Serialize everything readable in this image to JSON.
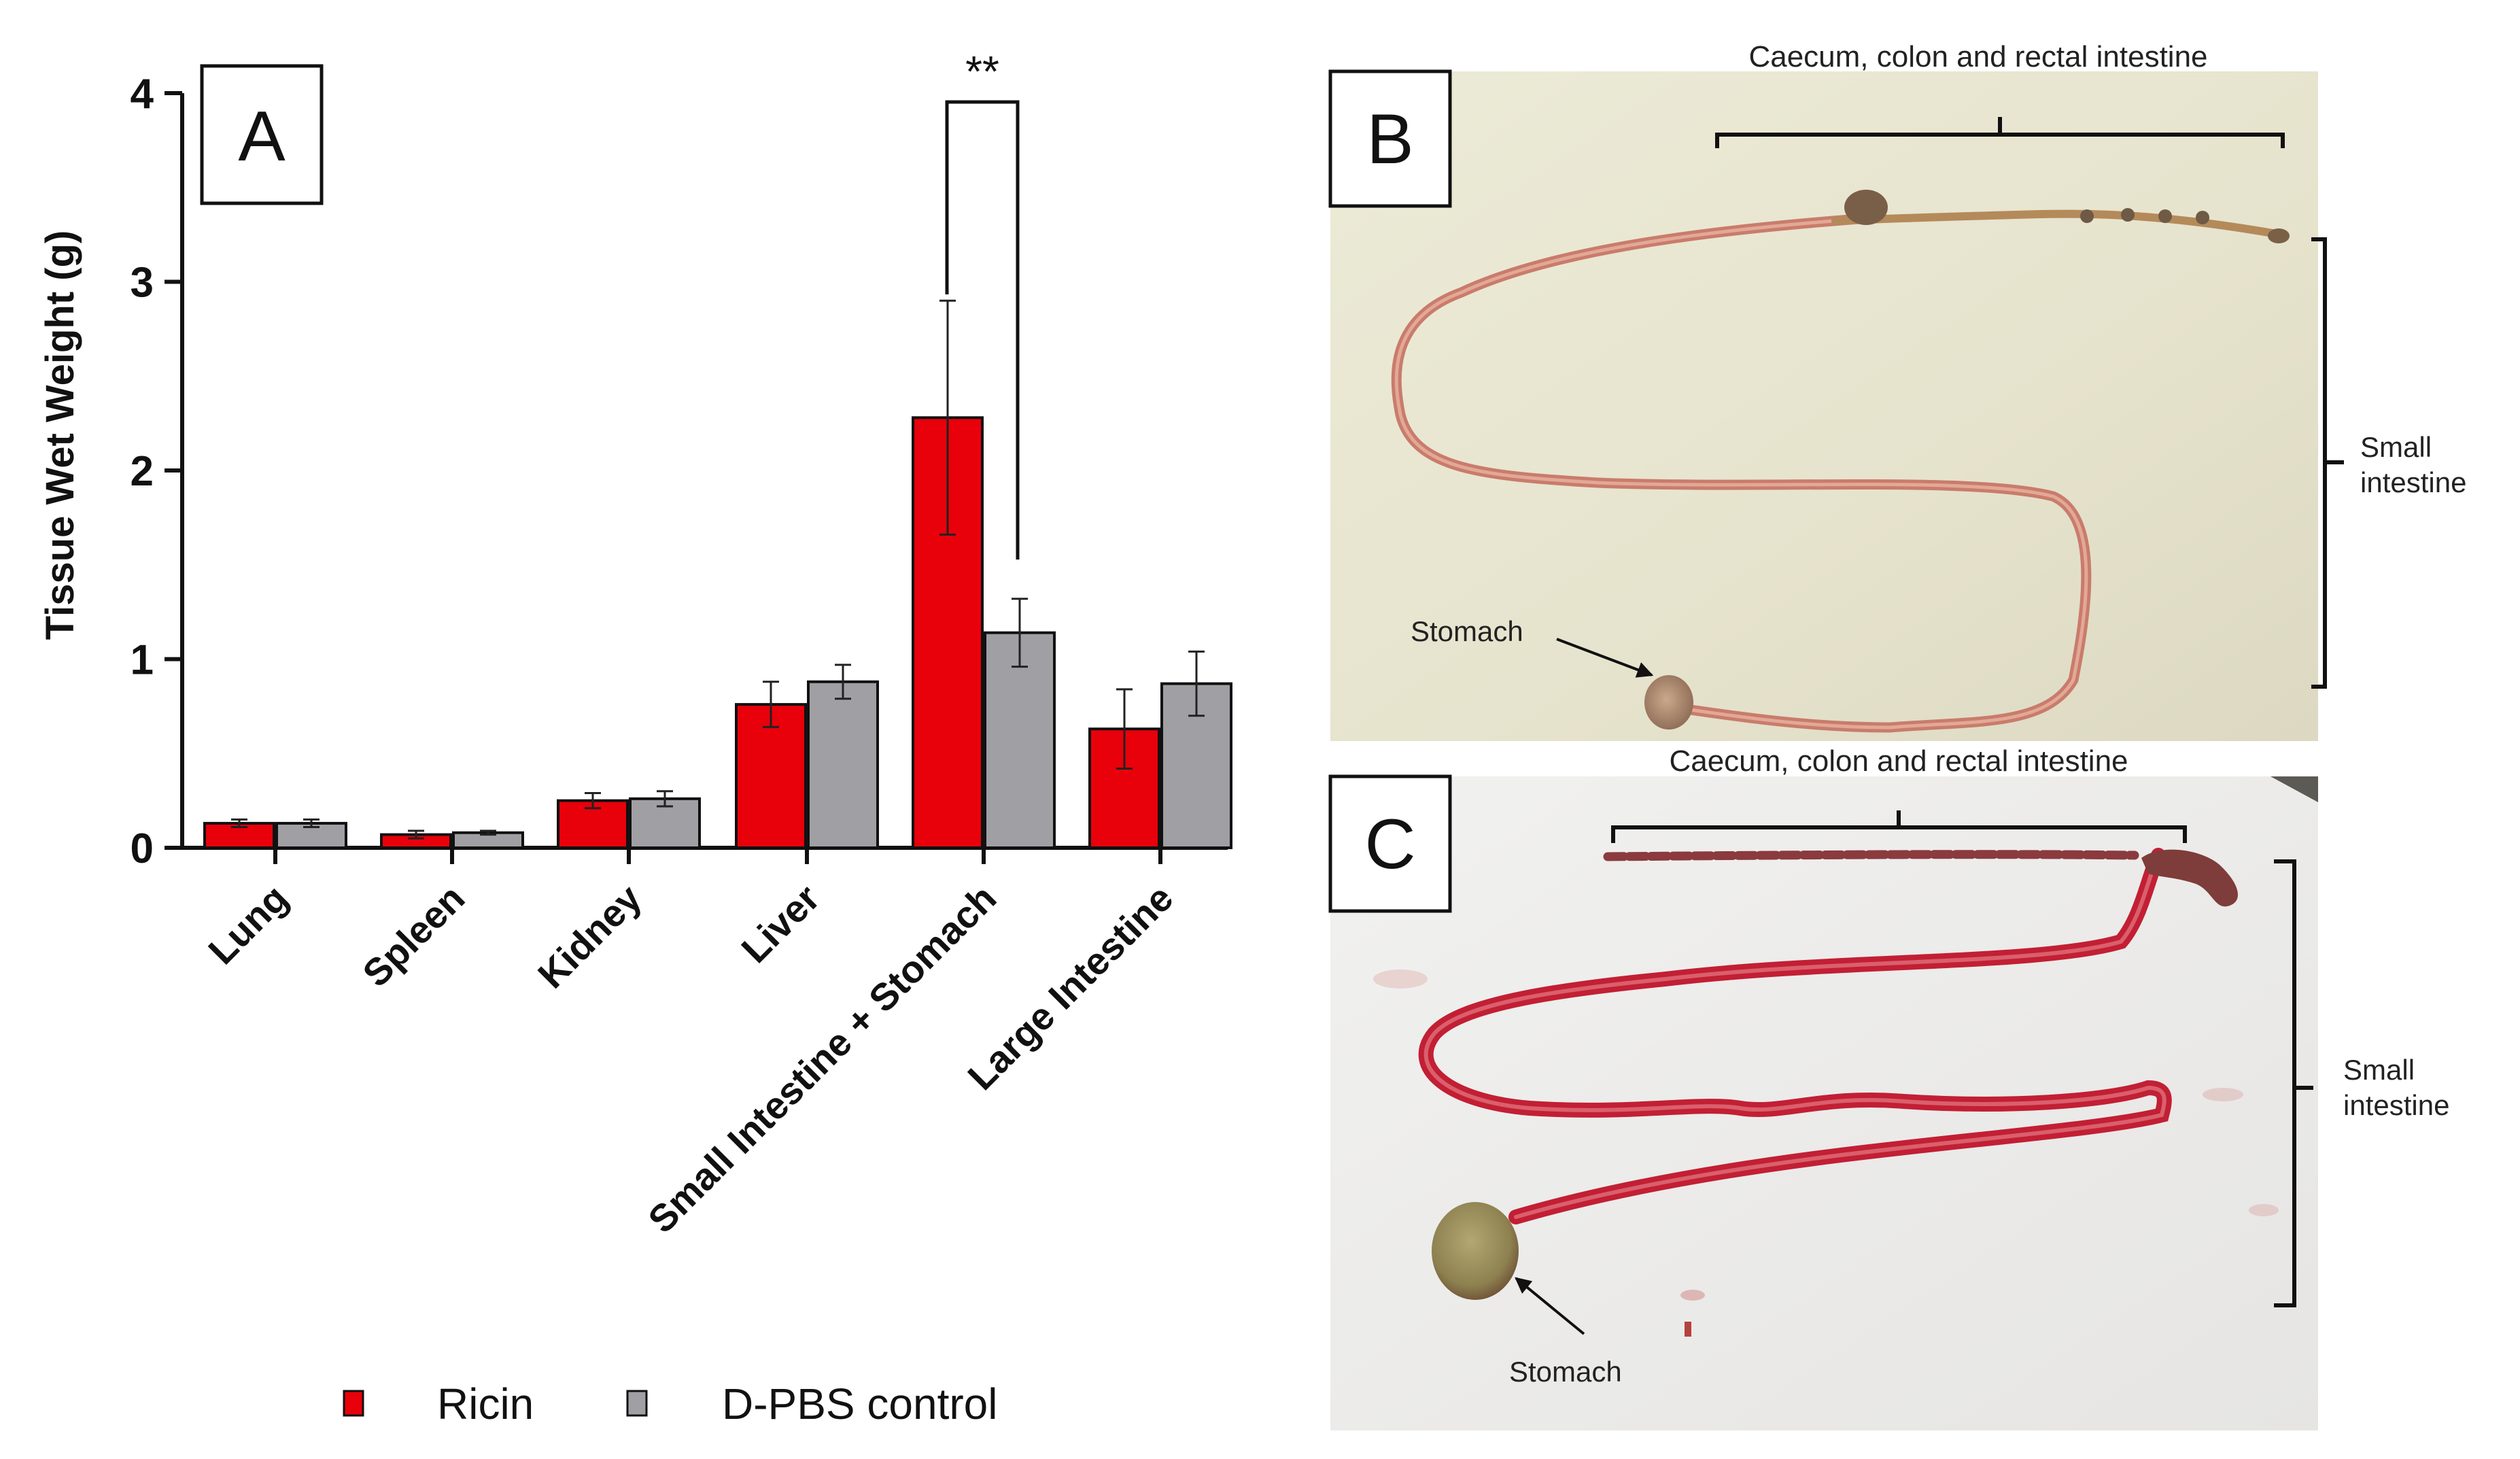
{
  "panel_a": {
    "label": "A",
    "ylabel": "Tissue Wet Weight (g)",
    "significance": "**",
    "legend": [
      {
        "name": "Ricin",
        "color": "#e8000b"
      },
      {
        "name": "D-PBS control",
        "color": "#a0a0a4"
      }
    ]
  },
  "chart_data": {
    "type": "bar",
    "categories": [
      "Lung",
      "Spleen",
      "Kidney",
      "Liver",
      "Small Intestine + Stomach",
      "Large Intestine"
    ],
    "series": [
      {
        "name": "Ricin",
        "values": [
          0.13,
          0.07,
          0.25,
          0.76,
          2.28,
          0.63
        ],
        "error": [
          0.02,
          0.02,
          0.04,
          0.12,
          0.62,
          0.21
        ],
        "color": "#e8000b"
      },
      {
        "name": "D-PBS control",
        "values": [
          0.13,
          0.08,
          0.26,
          0.88,
          1.14,
          0.87
        ],
        "error": [
          0.02,
          0.01,
          0.04,
          0.09,
          0.18,
          0.17
        ],
        "color": "#a0a0a4"
      }
    ],
    "ylabel": "Tissue Wet Weight (g)",
    "ylim": [
      0,
      4
    ],
    "yticks": [
      "0",
      "1",
      "2",
      "3",
      "4"
    ],
    "grid": false,
    "legend_position": "bottom",
    "annotation": "**"
  },
  "panel_b": {
    "label": "B",
    "top_bracket_label": "Caecum, colon and rectal intestine",
    "side_bracket_label_line1": "Small",
    "side_bracket_label_line2": "intestine",
    "arrow_label": "Stomach"
  },
  "panel_c": {
    "label": "C",
    "top_bracket_label": "Caecum, colon and rectal intestine",
    "side_bracket_label_line1": "Small",
    "side_bracket_label_line2": "intestine",
    "arrow_label": "Stomach"
  }
}
